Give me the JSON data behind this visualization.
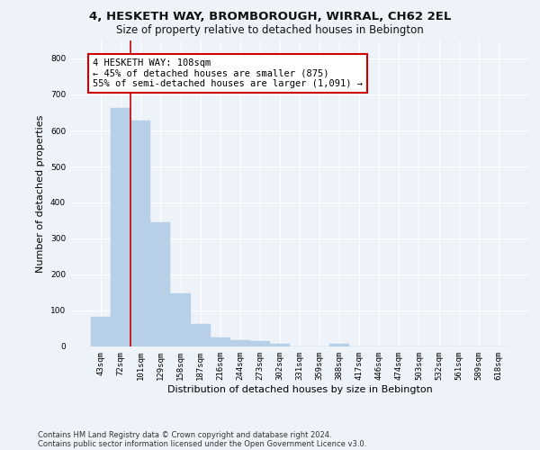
{
  "title1": "4, HESKETH WAY, BROMBOROUGH, WIRRAL, CH62 2EL",
  "title2": "Size of property relative to detached houses in Bebington",
  "xlabel": "Distribution of detached houses by size in Bebington",
  "ylabel": "Number of detached properties",
  "categories": [
    "43sqm",
    "72sqm",
    "101sqm",
    "129sqm",
    "158sqm",
    "187sqm",
    "216sqm",
    "244sqm",
    "273sqm",
    "302sqm",
    "331sqm",
    "359sqm",
    "388sqm",
    "417sqm",
    "446sqm",
    "474sqm",
    "503sqm",
    "532sqm",
    "561sqm",
    "589sqm",
    "618sqm"
  ],
  "values": [
    83,
    662,
    628,
    345,
    147,
    62,
    26,
    18,
    15,
    7,
    0,
    0,
    8,
    0,
    0,
    0,
    0,
    0,
    0,
    0,
    0
  ],
  "bar_color": "#b8cfe8",
  "vline_x_index": 1.5,
  "vline_color": "#cc0000",
  "annotation_line1": "4 HESKETH WAY: 108sqm",
  "annotation_line2": "← 45% of detached houses are smaller (875)",
  "annotation_line3": "55% of semi-detached houses are larger (1,091) →",
  "annotation_box_color": "#ffffff",
  "annotation_box_edgecolor": "#cc0000",
  "ylim": [
    0,
    850
  ],
  "yticks": [
    0,
    100,
    200,
    300,
    400,
    500,
    600,
    700,
    800
  ],
  "footer1": "Contains HM Land Registry data © Crown copyright and database right 2024.",
  "footer2": "Contains public sector information licensed under the Open Government Licence v3.0.",
  "bg_color": "#eef2f9",
  "grid_color": "#ffffff",
  "title1_fontsize": 9.5,
  "title2_fontsize": 8.5,
  "tick_fontsize": 6.5,
  "ylabel_fontsize": 8,
  "xlabel_fontsize": 8,
  "ann_fontsize": 7.5
}
